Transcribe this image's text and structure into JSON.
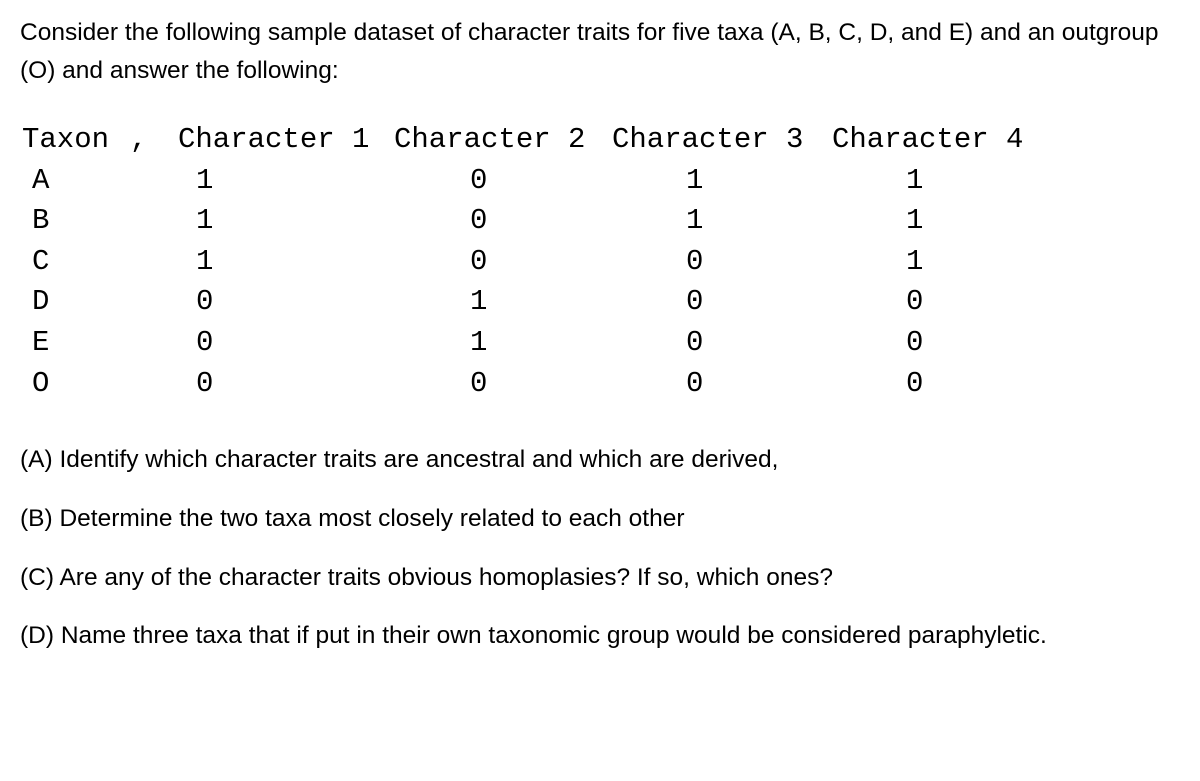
{
  "intro": "Consider the following sample dataset of character traits for five taxa (A, B, C, D, and E) and an outgroup (O) and answer the following:",
  "table": {
    "header": {
      "taxon": "Taxon",
      "sep": ",",
      "c1": "Character 1",
      "c2": "Character 2",
      "c3": "Character 3",
      "c4": "Character 4"
    },
    "rows": [
      {
        "taxon": "A",
        "c1": "1",
        "c2": "0",
        "c3": "1",
        "c4": "1"
      },
      {
        "taxon": "B",
        "c1": "1",
        "c2": "0",
        "c3": "1",
        "c4": "1"
      },
      {
        "taxon": "C",
        "c1": "1",
        "c2": "0",
        "c3": "0",
        "c4": "1"
      },
      {
        "taxon": "D",
        "c1": "0",
        "c2": "1",
        "c3": "0",
        "c4": "0"
      },
      {
        "taxon": "E",
        "c1": "0",
        "c2": "1",
        "c3": "0",
        "c4": "0"
      },
      {
        "taxon": "O",
        "c1": "0",
        "c2": "0",
        "c3": "0",
        "c4": "0"
      }
    ]
  },
  "questions": {
    "a": "(A) Identify which character traits are ancestral and which are derived,",
    "b": "(B) Determine the two taxa most closely related to each other",
    "c": "(C) Are any of the character traits obvious homoplasies? If so, which ones?",
    "d": "(D) Name three taxa that if put in their own taxonomic group would be considered paraphyletic."
  },
  "style": {
    "body_font": "Arial",
    "mono_font": "Consolas",
    "text_color": "#000000",
    "background_color": "#ffffff",
    "intro_fontsize": 24.5,
    "table_fontsize": 29,
    "question_fontsize": 24.5
  }
}
